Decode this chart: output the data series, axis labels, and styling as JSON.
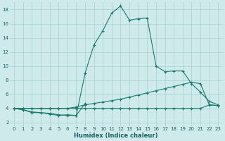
{
  "title": "",
  "xlabel": "Humidex (Indice chaleur)",
  "background_color": "#ceeaea",
  "grid_color": "#add4d4",
  "line_color": "#1a7a6e",
  "xlim": [
    -0.5,
    23.5
  ],
  "ylim": [
    1.5,
    19.0
  ],
  "yticks": [
    2,
    4,
    6,
    8,
    10,
    12,
    14,
    16,
    18
  ],
  "xticks": [
    0,
    1,
    2,
    3,
    4,
    5,
    6,
    7,
    8,
    9,
    10,
    11,
    12,
    13,
    14,
    15,
    16,
    17,
    18,
    19,
    20,
    21,
    22,
    23
  ],
  "series1_x": [
    0,
    1,
    2,
    3,
    4,
    5,
    6,
    7,
    8,
    9,
    10,
    11,
    12,
    13,
    14,
    15,
    16,
    17,
    18,
    19,
    20,
    21,
    22,
    23
  ],
  "series1_y": [
    4.0,
    3.8,
    3.5,
    3.4,
    3.3,
    3.1,
    3.0,
    3.0,
    9.0,
    13.0,
    15.0,
    17.5,
    18.5,
    16.5,
    16.7,
    16.8,
    10.0,
    9.2,
    9.3,
    9.3,
    7.5,
    6.3,
    5.0,
    4.5
  ],
  "series2_x": [
    0,
    1,
    2,
    3,
    4,
    5,
    6,
    7,
    8,
    9,
    10,
    11,
    12,
    13,
    14,
    15,
    16,
    17,
    18,
    19,
    20,
    21,
    22,
    23
  ],
  "series2_y": [
    4.0,
    4.0,
    4.0,
    4.0,
    4.0,
    4.0,
    4.0,
    4.2,
    4.5,
    4.7,
    4.9,
    5.1,
    5.3,
    5.6,
    5.9,
    6.2,
    6.5,
    6.8,
    7.1,
    7.4,
    7.7,
    7.5,
    4.5,
    4.4
  ],
  "series3_x": [
    0,
    1,
    2,
    3,
    4,
    5,
    6,
    7,
    8,
    9,
    10,
    11,
    12,
    13,
    14,
    15,
    16,
    17,
    18,
    19,
    20,
    21,
    22,
    23
  ],
  "series3_y": [
    4.0,
    4.0,
    4.0,
    4.0,
    4.0,
    4.0,
    4.0,
    4.0,
    4.0,
    4.0,
    4.0,
    4.0,
    4.0,
    4.0,
    4.0,
    4.0,
    4.0,
    4.0,
    4.0,
    4.0,
    4.0,
    4.0,
    4.5,
    4.4
  ],
  "series4_x": [
    0,
    1,
    2,
    3,
    4,
    5,
    6,
    7,
    8
  ],
  "series4_y": [
    4.0,
    3.8,
    3.4,
    3.4,
    3.2,
    3.0,
    3.1,
    3.0,
    4.7
  ]
}
